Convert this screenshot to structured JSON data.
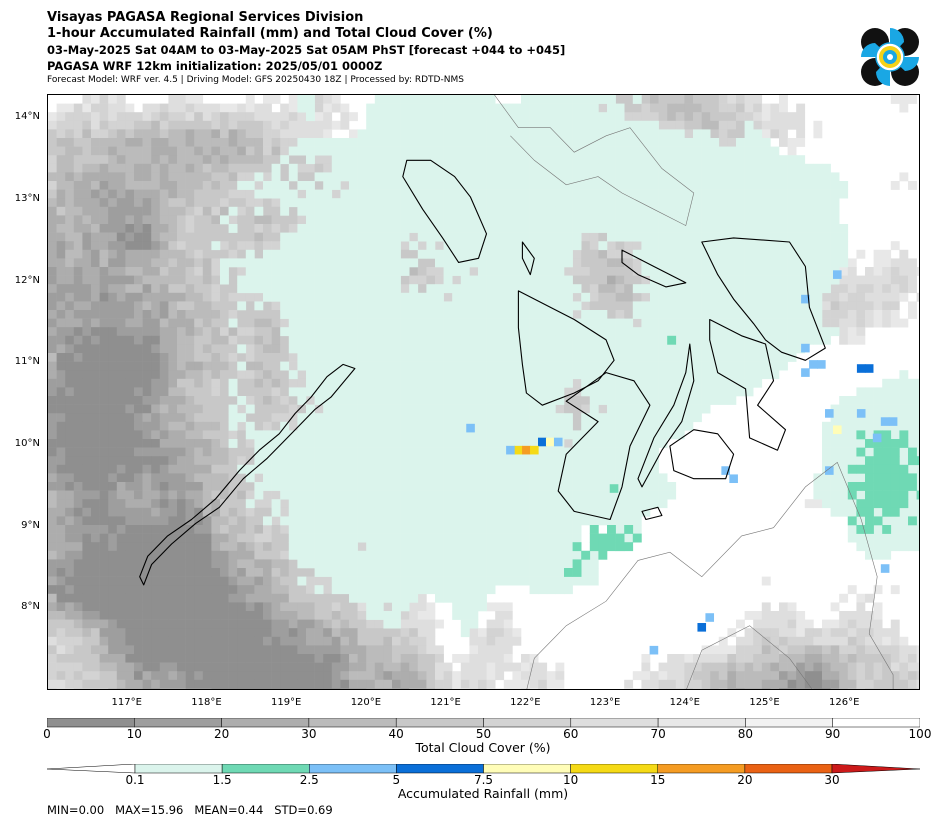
{
  "header": {
    "title": "Visayas PAGASA Regional Services Division",
    "subtitle": "1-hour Accumulated Rainfall (mm) and Total Cloud Cover (%)",
    "time_range": "03-May-2025 Sat 04AM to 03-May-2025 Sat 05AM PhST [forecast +044 to +045]",
    "init": "PAGASA WRF 12km initialization: 2025/05/01 0000Z",
    "model_info": "Forecast Model: WRF ver. 4.5 | Driving Model: GFS 20250430 18Z | Processed by: RDTD-NMS"
  },
  "map": {
    "lon_range": [
      116.0,
      126.95
    ],
    "lat_range": [
      7.0,
      14.3
    ],
    "lat_ticks": [
      "14°N",
      "13°N",
      "12°N",
      "11°N",
      "10°N",
      "9°N",
      "8°N"
    ],
    "lat_values": [
      14,
      13,
      12,
      11,
      10,
      9,
      8
    ],
    "lon_ticks": [
      "117°E",
      "118°E",
      "119°E",
      "120°E",
      "121°E",
      "122°E",
      "123°E",
      "124°E",
      "125°E",
      "126°E"
    ],
    "lon_values": [
      117,
      118,
      119,
      120,
      121,
      122,
      123,
      124,
      125,
      126
    ],
    "coastline_color": "#000000",
    "gridcell_size_deg": 0.108
  },
  "cloud_colorbar": {
    "title": "Total Cloud Cover (%)",
    "ticks": [
      "0",
      "10",
      "20",
      "30",
      "40",
      "50",
      "60",
      "70",
      "80",
      "90",
      "100"
    ],
    "colors": [
      "#8f8f8f",
      "#9e9e9e",
      "#adadad",
      "#bbbbbb",
      "#c8c8c8",
      "#d3d3d3",
      "#dedede",
      "#e8e8e8",
      "#f2f2f2",
      "#ffffff"
    ]
  },
  "rain_colorbar": {
    "title": "Accumulated Rainfall (mm)",
    "ticks": [
      "0.1",
      "1.5",
      "2.5",
      "5",
      "7.5",
      "10",
      "15",
      "20",
      "30"
    ],
    "colors": [
      "#dbf4ec",
      "#6fd9b4",
      "#7cc0f7",
      "#0a6fd8",
      "#fffdb8",
      "#f5da16",
      "#f59c23",
      "#ea6214",
      "#cc1a1a"
    ],
    "under_color": "#ffffff",
    "over_color": "#cc1a1a"
  },
  "stats": {
    "min_label": "MIN=",
    "min": "0.00",
    "max_label": "MAX=",
    "max": "15.96",
    "mean_label": "MEAN=",
    "mean": "0.44",
    "std_label": "STD=",
    "std": "0.69"
  },
  "rain_cells": [
    {
      "lon": 121.3,
      "lat": 10.22,
      "mm": 2.8
    },
    {
      "lon": 122.2,
      "lat": 10.05,
      "mm": 6.2
    },
    {
      "lon": 122.3,
      "lat": 10.05,
      "mm": 8.5
    },
    {
      "lon": 121.9,
      "lat": 9.95,
      "mm": 12.0
    },
    {
      "lon": 122.0,
      "lat": 9.95,
      "mm": 15.96
    },
    {
      "lon": 122.1,
      "lat": 9.95,
      "mm": 11.0
    },
    {
      "lon": 121.8,
      "lat": 9.95,
      "mm": 2.7
    },
    {
      "lon": 122.4,
      "lat": 10.05,
      "mm": 3.0
    },
    {
      "lon": 123.1,
      "lat": 9.48,
      "mm": 1.8
    },
    {
      "lon": 124.2,
      "lat": 7.78,
      "mm": 6.0
    },
    {
      "lon": 124.3,
      "lat": 7.9,
      "mm": 3.2
    },
    {
      "lon": 125.5,
      "lat": 11.2,
      "mm": 3.0
    },
    {
      "lon": 125.6,
      "lat": 11.0,
      "mm": 3.4
    },
    {
      "lon": 125.7,
      "lat": 11.0,
      "mm": 3.4
    },
    {
      "lon": 125.5,
      "lat": 10.9,
      "mm": 3.1
    },
    {
      "lon": 126.2,
      "lat": 10.95,
      "mm": 6.0
    },
    {
      "lon": 126.3,
      "lat": 10.95,
      "mm": 6.0
    },
    {
      "lon": 125.9,
      "lat": 12.1,
      "mm": 3.0
    },
    {
      "lon": 125.5,
      "lat": 11.8,
      "mm": 2.6
    },
    {
      "lon": 126.2,
      "lat": 10.4,
      "mm": 2.8
    },
    {
      "lon": 126.5,
      "lat": 10.3,
      "mm": 2.6
    },
    {
      "lon": 126.6,
      "lat": 10.3,
      "mm": 2.6
    },
    {
      "lon": 126.4,
      "lat": 10.1,
      "mm": 2.7
    },
    {
      "lon": 125.9,
      "lat": 10.2,
      "mm": 8.0
    },
    {
      "lon": 125.8,
      "lat": 10.4,
      "mm": 2.6
    },
    {
      "lon": 124.5,
      "lat": 9.7,
      "mm": 2.7
    },
    {
      "lon": 124.6,
      "lat": 9.6,
      "mm": 2.6
    },
    {
      "lon": 125.8,
      "lat": 9.7,
      "mm": 2.8
    },
    {
      "lon": 126.5,
      "lat": 8.5,
      "mm": 2.6
    },
    {
      "lon": 123.6,
      "lat": 7.5,
      "mm": 2.6
    }
  ]
}
